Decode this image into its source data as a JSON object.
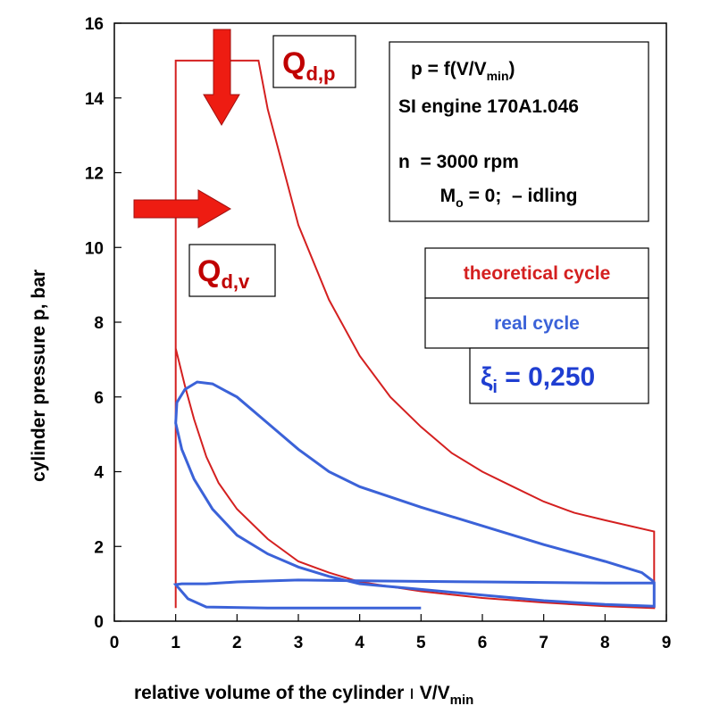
{
  "chart_data": {
    "type": "line",
    "xlabel": "relative volume of the cylinder",
    "xlabel_var": "V/V",
    "xlabel_sub": "min",
    "ylabel": "cylinder pressure p, bar",
    "xlim": [
      0,
      9
    ],
    "ylim": [
      0,
      16
    ],
    "x_ticks": [
      "0",
      "1",
      "2",
      "3",
      "4",
      "5",
      "6",
      "7",
      "8",
      "9"
    ],
    "y_ticks": [
      "0",
      "2",
      "4",
      "6",
      "8",
      "10",
      "12",
      "14",
      "16"
    ],
    "grid": false,
    "info_box": {
      "line1_pre": "p = f(V/V",
      "line1_sub": "min",
      "line1_post": ")",
      "line2": "SI engine 170A1.046",
      "line3": "n  = 3000 rpm",
      "line4_pre": " M",
      "line4_sub": "o",
      "line4_post": " = 0;  – idling"
    },
    "heat_labels": {
      "qp_main": "Q",
      "qp_sub": "d,p",
      "qv_main": "Q",
      "qv_sub": "d,v"
    },
    "legend": {
      "theoretical": "theoretical cycle",
      "real": "real cycle",
      "efficiency_symbol": "ξ",
      "efficiency_sub": "i",
      "efficiency_value": " = 0,250"
    },
    "colors": {
      "theoretical": "#d42020",
      "real": "#3b62d8",
      "arrow": "#ee1c12",
      "label_red": "#c00000",
      "efficiency": "#1f3ed1"
    },
    "series": [
      {
        "name": "theoretical cycle",
        "color": "#d42020",
        "points": [
          [
            1.0,
            0.35
          ],
          [
            1.0,
            7.3
          ],
          [
            1.0,
            15.0
          ],
          [
            2.35,
            15.0
          ],
          [
            2.5,
            13.7
          ],
          [
            3.0,
            10.6
          ],
          [
            3.5,
            8.6
          ],
          [
            4.0,
            7.1
          ],
          [
            4.5,
            6.0
          ],
          [
            5.0,
            5.2
          ],
          [
            5.5,
            4.5
          ],
          [
            6.0,
            4.0
          ],
          [
            6.5,
            3.6
          ],
          [
            7.0,
            3.2
          ],
          [
            7.5,
            2.9
          ],
          [
            8.0,
            2.7
          ],
          [
            8.8,
            2.4
          ],
          [
            8.8,
            0.35
          ],
          [
            8.0,
            0.4
          ],
          [
            7.0,
            0.5
          ],
          [
            6.0,
            0.62
          ],
          [
            5.0,
            0.8
          ],
          [
            4.0,
            1.05
          ],
          [
            3.5,
            1.3
          ],
          [
            3.0,
            1.6
          ],
          [
            2.5,
            2.2
          ],
          [
            2.0,
            3.0
          ],
          [
            1.7,
            3.7
          ],
          [
            1.5,
            4.4
          ],
          [
            1.3,
            5.4
          ],
          [
            1.15,
            6.3
          ],
          [
            1.0,
            7.3
          ]
        ]
      },
      {
        "name": "real cycle",
        "color": "#3b62d8",
        "points": [
          [
            8.8,
            1.05
          ],
          [
            8.6,
            1.3
          ],
          [
            8.0,
            1.6
          ],
          [
            7.0,
            2.05
          ],
          [
            6.0,
            2.55
          ],
          [
            5.0,
            3.05
          ],
          [
            4.0,
            3.6
          ],
          [
            3.5,
            4.0
          ],
          [
            3.0,
            4.6
          ],
          [
            2.5,
            5.3
          ],
          [
            2.0,
            6.0
          ],
          [
            1.6,
            6.35
          ],
          [
            1.35,
            6.4
          ],
          [
            1.15,
            6.2
          ],
          [
            1.02,
            5.85
          ],
          [
            1.0,
            5.3
          ],
          [
            1.1,
            4.6
          ],
          [
            1.3,
            3.8
          ],
          [
            1.6,
            3.0
          ],
          [
            2.0,
            2.3
          ],
          [
            2.5,
            1.8
          ],
          [
            3.0,
            1.45
          ],
          [
            3.5,
            1.2
          ],
          [
            4.0,
            1.0
          ],
          [
            5.0,
            0.85
          ],
          [
            6.0,
            0.7
          ],
          [
            7.0,
            0.55
          ],
          [
            8.0,
            0.45
          ],
          [
            8.8,
            0.4
          ],
          [
            8.8,
            1.02
          ],
          [
            8.0,
            1.02
          ],
          [
            6.0,
            1.05
          ],
          [
            4.0,
            1.08
          ],
          [
            3.0,
            1.1
          ],
          [
            2.0,
            1.05
          ],
          [
            1.5,
            1.0
          ],
          [
            1.1,
            1.0
          ],
          [
            1.0,
            0.98
          ],
          [
            1.2,
            0.6
          ],
          [
            1.5,
            0.38
          ],
          [
            2.5,
            0.35
          ],
          [
            4.0,
            0.35
          ],
          [
            5.0,
            0.35
          ]
        ]
      }
    ]
  }
}
